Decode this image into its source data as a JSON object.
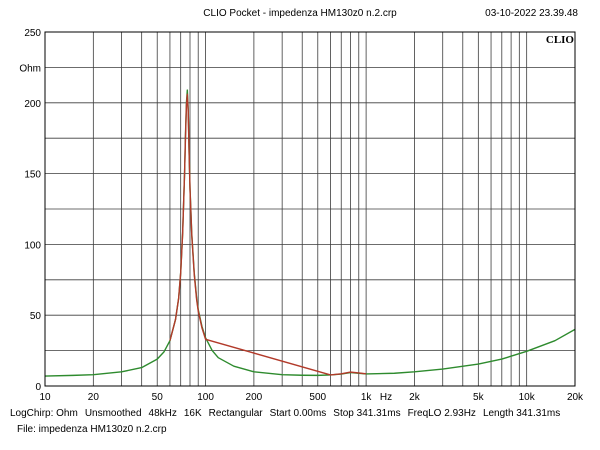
{
  "header": {
    "title": "CLIO Pocket - impedenza HM130z0 n.2.crp",
    "timestamp": "03-10-2022 23.39.48",
    "logo": "CLIO"
  },
  "footer": {
    "params": [
      "LogChirp: Ohm",
      "Unsmoothed",
      "48kHz",
      "16K",
      "Rectangular",
      "Start 0.00ms",
      "Stop 341.31ms",
      "FreqLO 2.93Hz",
      "Length 341.31ms"
    ],
    "file": "File: impedenza HM130z0 n.2.crp"
  },
  "chart_data": {
    "type": "line",
    "xscale": "log",
    "xlim": [
      10,
      20000
    ],
    "ylim": [
      0,
      250
    ],
    "ylabel": "Ohm",
    "xlabel_unit": "Hz",
    "grid": true,
    "x_tick_labels": [
      {
        "value": 10,
        "label": "10"
      },
      {
        "value": 20,
        "label": "20"
      },
      {
        "value": 50,
        "label": "50"
      },
      {
        "value": 100,
        "label": "100"
      },
      {
        "value": 200,
        "label": "200"
      },
      {
        "value": 500,
        "label": "500"
      },
      {
        "value": 1000,
        "label": "1k"
      },
      {
        "value": 2000,
        "label": "2k"
      },
      {
        "value": 5000,
        "label": "5k"
      },
      {
        "value": 10000,
        "label": "10k"
      },
      {
        "value": 20000,
        "label": "20k"
      }
    ],
    "y_ticks": [
      0,
      50,
      100,
      150,
      200,
      250
    ],
    "series": [
      {
        "color": "#2e8b2e",
        "x": [
          10,
          15,
          20,
          30,
          40,
          50,
          55,
          60,
          65,
          68,
          70,
          72,
          74,
          75,
          76,
          77,
          78,
          79,
          80,
          82,
          85,
          88,
          90,
          95,
          100,
          110,
          120,
          150,
          200,
          300,
          400,
          500,
          600,
          700,
          800,
          900,
          1000,
          1500,
          2000,
          3000,
          5000,
          7000,
          10000,
          15000,
          20000
        ],
        "y": [
          7,
          7.5,
          8,
          10,
          13,
          19,
          24,
          32,
          47,
          62,
          80,
          108,
          150,
          178,
          200,
          209,
          195,
          165,
          140,
          108,
          80,
          62,
          54,
          42,
          34,
          25,
          20,
          14,
          10,
          8,
          7.6,
          7.5,
          7.8,
          8.4,
          9.5,
          9,
          8.5,
          9,
          10,
          12,
          15.5,
          19,
          24.5,
          32,
          40
        ]
      },
      {
        "color": "#b23a2a",
        "x": [
          60,
          65,
          68,
          70,
          72,
          74,
          75,
          76,
          77,
          78,
          79,
          80,
          82,
          85,
          88,
          90,
          95,
          100,
          600,
          700,
          800,
          900,
          1000
        ],
        "y": [
          32,
          47,
          62,
          80,
          108,
          150,
          176,
          198,
          206,
          193,
          164,
          139,
          107,
          79,
          61,
          53,
          41,
          33,
          7.8,
          8.6,
          9.8,
          9.2,
          8.6
        ]
      }
    ]
  }
}
